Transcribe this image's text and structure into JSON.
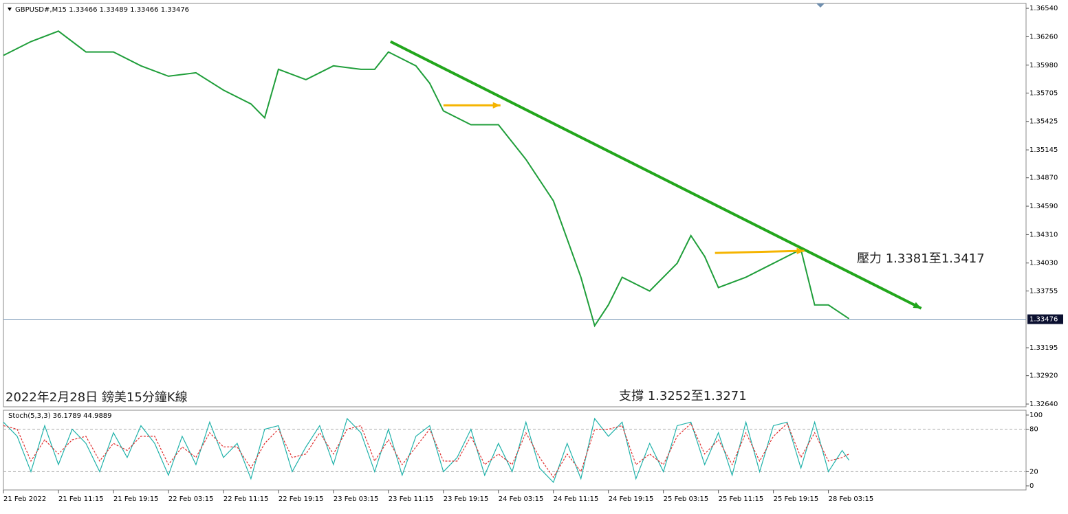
{
  "chart_data": [
    {
      "type": "line",
      "title": "GBPUSD#,M15  1.33466 1.33489 1.33466 1.33476",
      "annotations": [
        "2022年2月28日 鎊美15分鐘K線",
        "支撐 1.3252至1.3271",
        "壓力 1.3381至1.3417"
      ],
      "xlim": [
        0,
        595
      ],
      "xticks": [
        {
          "value": 0,
          "label": "21 Feb 2022"
        },
        {
          "value": 32,
          "label": "21 Feb 11:15"
        },
        {
          "value": 64,
          "label": "21 Feb 19:15"
        },
        {
          "value": 96,
          "label": "22 Feb 03:15"
        },
        {
          "value": 128,
          "label": "22 Feb 11:15"
        },
        {
          "value": 160,
          "label": "22 Feb 19:15"
        },
        {
          "value": 192,
          "label": "23 Feb 03:15"
        },
        {
          "value": 224,
          "label": "23 Feb 11:15"
        },
        {
          "value": 256,
          "label": "23 Feb 19:15"
        },
        {
          "value": 288,
          "label": "24 Feb 03:15"
        },
        {
          "value": 320,
          "label": "24 Feb 11:15"
        },
        {
          "value": 352,
          "label": "24 Feb 19:15"
        },
        {
          "value": 384,
          "label": "25 Feb 03:15"
        },
        {
          "value": 416,
          "label": "25 Feb 11:15"
        },
        {
          "value": 448,
          "label": "25 Feb 19:15"
        },
        {
          "value": 480,
          "label": "28 Feb 03:15"
        }
      ],
      "ylim": [
        1.32613,
        1.36588
      ],
      "yticks": [
        {
          "value": 1.3654,
          "label": "1.36540"
        },
        {
          "value": 1.3626,
          "label": "1.36260"
        },
        {
          "value": 1.3598,
          "label": "1.35980"
        },
        {
          "value": 1.35705,
          "label": "1.35705"
        },
        {
          "value": 1.35425,
          "label": "1.35425"
        },
        {
          "value": 1.35145,
          "label": "1.35145"
        },
        {
          "value": 1.3487,
          "label": "1.34870"
        },
        {
          "value": 1.3459,
          "label": "1.34590"
        },
        {
          "value": 1.3431,
          "label": "1.34310"
        },
        {
          "value": 1.3403,
          "label": "1.34030"
        },
        {
          "value": 1.33755,
          "label": "1.33755"
        },
        {
          "value": 1.33195,
          "label": "1.33195"
        },
        {
          "value": 1.3292,
          "label": "1.32920"
        },
        {
          "value": 1.3264,
          "label": "1.32640"
        }
      ],
      "current_price": {
        "value": 1.33476,
        "label": "1.33476"
      },
      "x": [
        0,
        16,
        32,
        48,
        64,
        80,
        96,
        112,
        128,
        144,
        152,
        160,
        176,
        192,
        208,
        216,
        224,
        240,
        248,
        256,
        272,
        288,
        304,
        320,
        336,
        344,
        352,
        360,
        376,
        392,
        400,
        408,
        416,
        432,
        448,
        464,
        472,
        480,
        492
      ],
      "series": [
        {
          "color": "#1f9e3a",
          "values": [
            1.36076,
            1.36212,
            1.36315,
            1.3611,
            1.3611,
            1.35973,
            1.35871,
            1.35905,
            1.35734,
            1.35598,
            1.35461,
            1.35939,
            1.35837,
            1.35973,
            1.35939,
            1.35939,
            1.3611,
            1.35973,
            1.35802,
            1.35529,
            1.35393,
            1.35393,
            1.35051,
            1.34642,
            1.3389,
            1.33412,
            1.33617,
            1.3389,
            1.33754,
            1.34027,
            1.343,
            1.34095,
            1.33788,
            1.3389,
            1.34027,
            1.34164,
            1.33617,
            1.33617,
            1.33481
          ]
        }
      ],
      "lines": [
        {
          "color": "#22a61c",
          "x": [
            225.2,
            534
          ],
          "y": [
            1.36212,
            1.33583
          ]
        },
        {
          "color": "#f5b400",
          "x": [
            256,
            289.2
          ],
          "y": [
            1.35584,
            1.35584
          ]
        },
        {
          "color": "#f5b400",
          "x": [
            414,
            466
          ],
          "y": [
            1.34129,
            1.3415
          ]
        }
      ]
    },
    {
      "type": "line",
      "title": "Stoch(5,3,3) 36.1789 44.9889",
      "xlim": [
        0,
        595
      ],
      "ylim": [
        -5.8,
        106.8
      ],
      "yticks": [
        100,
        80,
        20,
        0
      ],
      "x": [
        0,
        8,
        16,
        24,
        32,
        40,
        48,
        56,
        64,
        72,
        80,
        88,
        96,
        104,
        112,
        120,
        128,
        136,
        144,
        152,
        160,
        168,
        176,
        184,
        192,
        200,
        208,
        216,
        224,
        232,
        240,
        248,
        256,
        264,
        272,
        280,
        288,
        296,
        304,
        312,
        320,
        328,
        336,
        344,
        352,
        360,
        368,
        376,
        384,
        392,
        400,
        408,
        416,
        424,
        432,
        440,
        448,
        456,
        464,
        472,
        480,
        488,
        492
      ],
      "series": [
        {
          "color": "#20b2aa",
          "values": [
            90,
            70,
            20,
            85,
            30,
            80,
            60,
            20,
            75,
            40,
            85,
            60,
            15,
            70,
            30,
            90,
            40,
            60,
            10,
            80,
            85,
            20,
            55,
            85,
            30,
            95,
            75,
            20,
            80,
            15,
            70,
            85,
            20,
            40,
            80,
            15,
            60,
            20,
            90,
            25,
            5,
            60,
            10,
            95,
            70,
            90,
            10,
            60,
            20,
            85,
            90,
            30,
            75,
            15,
            90,
            20,
            85,
            90,
            25,
            90,
            20,
            50,
            36.1789
          ]
        },
        {
          "color": "#e03030",
          "values": [
            85,
            80,
            35,
            65,
            45,
            65,
            70,
            35,
            60,
            50,
            70,
            70,
            30,
            55,
            40,
            75,
            55,
            55,
            25,
            60,
            80,
            40,
            45,
            75,
            45,
            80,
            85,
            35,
            65,
            30,
            55,
            80,
            35,
            35,
            70,
            30,
            45,
            30,
            75,
            40,
            12,
            45,
            20,
            80,
            80,
            85,
            30,
            45,
            30,
            70,
            88,
            45,
            65,
            30,
            75,
            35,
            70,
            88,
            40,
            75,
            35,
            40,
            44.9889
          ]
        }
      ]
    }
  ]
}
